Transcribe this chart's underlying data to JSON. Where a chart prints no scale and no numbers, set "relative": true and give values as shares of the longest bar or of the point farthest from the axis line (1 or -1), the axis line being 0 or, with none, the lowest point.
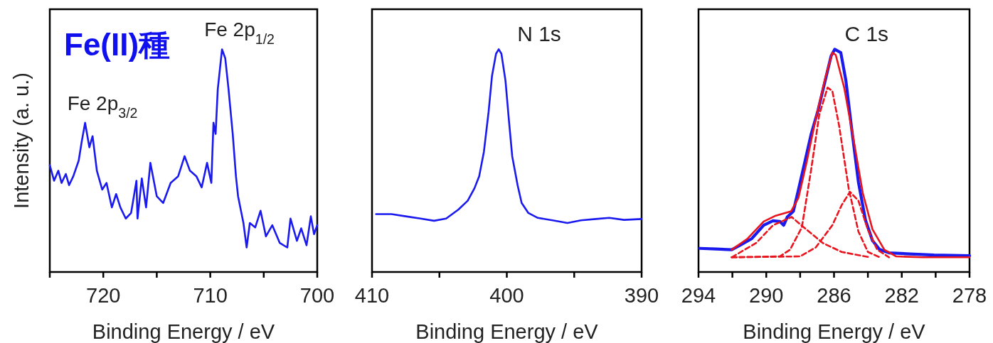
{
  "chart_data": [
    {
      "type": "line",
      "relative": true,
      "xlabel": "Binding Energy / eV",
      "ylabel": "Intensity (a. u.)",
      "xlim": [
        725,
        700
      ],
      "xticks": [
        {
          "value": 725,
          "label": null
        },
        720,
        {
          "value": 715,
          "label": null
        },
        710,
        {
          "value": 705,
          "label": null
        },
        700
      ],
      "annotations": [
        "Fe(II)種",
        {
          "text": "Fe 2p$_{3/2}$",
          "x": 721.7,
          "y": 0.67
        },
        {
          "text": "Fe 2p$_{1/2}$",
          "x": 708.9,
          "y": 1.0
        }
      ],
      "series": [
        {
          "color": "#1a1aee",
          "line_style": "solid",
          "x": [
            725,
            724.6,
            724.2,
            723.9,
            723.5,
            723.2,
            722.8,
            722.3,
            722.0,
            721.7,
            721.3,
            721.0,
            720.6,
            720.1,
            719.7,
            719.2,
            718.8,
            718.4,
            717.9,
            717.4,
            716.9,
            716.8,
            716.4,
            716.0,
            715.6,
            715.0,
            714.4,
            713.7,
            713.0,
            712.4,
            711.9,
            711.3,
            710.8,
            710.3,
            709.9,
            709.7,
            709.5,
            709.3,
            708.9,
            708.6,
            708.3,
            707.9,
            707.6,
            707.4,
            706.9,
            706.6,
            706.3,
            705.8,
            705.3,
            704.8,
            704.2,
            703.5,
            702.8,
            702.5,
            701.9,
            701.5,
            701.0,
            700.6,
            700.3,
            700.0
          ],
          "values": [
            0.48,
            0.41,
            0.455,
            0.4,
            0.44,
            0.39,
            0.43,
            0.5,
            0.59,
            0.67,
            0.56,
            0.61,
            0.455,
            0.37,
            0.4,
            0.29,
            0.35,
            0.29,
            0.24,
            0.265,
            0.41,
            0.24,
            0.42,
            0.29,
            0.49,
            0.34,
            0.31,
            0.4,
            0.43,
            0.52,
            0.455,
            0.43,
            0.38,
            0.49,
            0.4,
            0.67,
            0.62,
            0.82,
            1.0,
            0.96,
            0.825,
            0.62,
            0.43,
            0.34,
            0.22,
            0.11,
            0.22,
            0.2,
            0.275,
            0.16,
            0.21,
            0.13,
            0.11,
            0.24,
            0.14,
            0.196,
            0.12,
            0.25,
            0.17,
            0.21
          ]
        }
      ]
    },
    {
      "type": "line",
      "relative": true,
      "title": "N 1s",
      "xlabel": "Binding Energy / eV",
      "xlim": [
        410,
        390
      ],
      "xticks": [
        410,
        {
          "value": 405,
          "label": null
        },
        400,
        {
          "value": 395,
          "label": null
        },
        390
      ],
      "series": [
        {
          "color": "#1a1aee",
          "line_style": "solid",
          "x": [
            409.7,
            408.55,
            407.5,
            406.4,
            405.4,
            404.5,
            403.6,
            402.9,
            402.4,
            402.05,
            401.7,
            401.35,
            401.1,
            400.8,
            400.6,
            400.4,
            400.1,
            399.85,
            399.6,
            399.2,
            398.9,
            398.4,
            397.7,
            396.6,
            395.5,
            394.5,
            393.4,
            392.4,
            391.3,
            390.0
          ],
          "values": [
            0.26,
            0.26,
            0.25,
            0.24,
            0.23,
            0.24,
            0.28,
            0.32,
            0.376,
            0.43,
            0.54,
            0.72,
            0.88,
            0.98,
            1.0,
            0.98,
            0.86,
            0.685,
            0.52,
            0.39,
            0.31,
            0.265,
            0.243,
            0.232,
            0.22,
            0.232,
            0.238,
            0.243,
            0.234,
            0.238
          ]
        }
      ]
    },
    {
      "type": "line",
      "relative": true,
      "title": "C 1s",
      "xlabel": "Binding Energy / eV",
      "xlim": [
        294,
        278
      ],
      "xticks": [
        294,
        {
          "value": 292,
          "label": null
        },
        290,
        {
          "value": 288,
          "label": null
        },
        286,
        {
          "value": 284,
          "label": null
        },
        282,
        {
          "value": 280,
          "label": null
        },
        278
      ],
      "series": [
        {
          "color": "#1a1aee",
          "line_style": "solid",
          "x": [
            293.93,
            292.95,
            292.04,
            291.55,
            290.85,
            290.15,
            289.6,
            289.2,
            288.97,
            288.76,
            288.4,
            288.13,
            287.78,
            287.36,
            286.94,
            286.52,
            286.17,
            285.96,
            285.6,
            285.3,
            284.98,
            284.56,
            284.14,
            283.73,
            283.31,
            282.75,
            281.5,
            280.1,
            278.0
          ],
          "values": [
            0.106,
            0.103,
            0.1,
            0.12,
            0.15,
            0.21,
            0.23,
            0.227,
            0.21,
            0.247,
            0.273,
            0.36,
            0.475,
            0.616,
            0.727,
            0.86,
            0.97,
            1.0,
            0.985,
            0.86,
            0.657,
            0.404,
            0.232,
            0.141,
            0.101,
            0.086,
            0.081,
            0.076,
            0.073
          ]
        },
        {
          "color": "#e8141e",
          "line_style": "solid",
          "x": [
            292.04,
            291.1,
            290.15,
            289.44,
            288.53,
            288.1,
            287.64,
            287.08,
            286.52,
            286.1,
            285.9,
            285.4,
            284.85,
            284.3,
            283.73,
            283.03,
            282.33,
            280.8,
            278.0
          ],
          "values": [
            0.1,
            0.15,
            0.227,
            0.253,
            0.273,
            0.333,
            0.485,
            0.687,
            0.87,
            0.985,
            0.975,
            0.828,
            0.596,
            0.354,
            0.192,
            0.1,
            0.07,
            0.066,
            0.066
          ]
        },
        {
          "color": "#e8141e",
          "line_style": "dashed",
          "x": [
            292.04,
            290.6,
            289.6,
            288.5,
            287.78,
            286.66,
            285.55,
            283.87
          ],
          "values": [
            0.066,
            0.13,
            0.21,
            0.247,
            0.2,
            0.13,
            0.09,
            0.066
          ]
        },
        {
          "color": "#e8141e",
          "line_style": "dashed",
          "x": [
            292.04,
            289.2,
            288.6,
            287.9,
            287.36,
            286.87,
            286.38,
            286.1,
            285.7,
            285.13,
            284.56,
            284.0,
            283.3
          ],
          "values": [
            0.066,
            0.07,
            0.1,
            0.2,
            0.455,
            0.707,
            0.828,
            0.813,
            0.657,
            0.374,
            0.182,
            0.09,
            0.066
          ]
        },
        {
          "color": "#e8141e",
          "line_style": "dashed",
          "x": [
            292.04,
            288.0,
            287.08,
            286.1,
            285.55,
            285.06,
            284.56,
            284.0,
            283.45,
            282.75
          ],
          "values": [
            0.066,
            0.07,
            0.11,
            0.21,
            0.3,
            0.36,
            0.32,
            0.19,
            0.1,
            0.066
          ]
        }
      ]
    }
  ]
}
